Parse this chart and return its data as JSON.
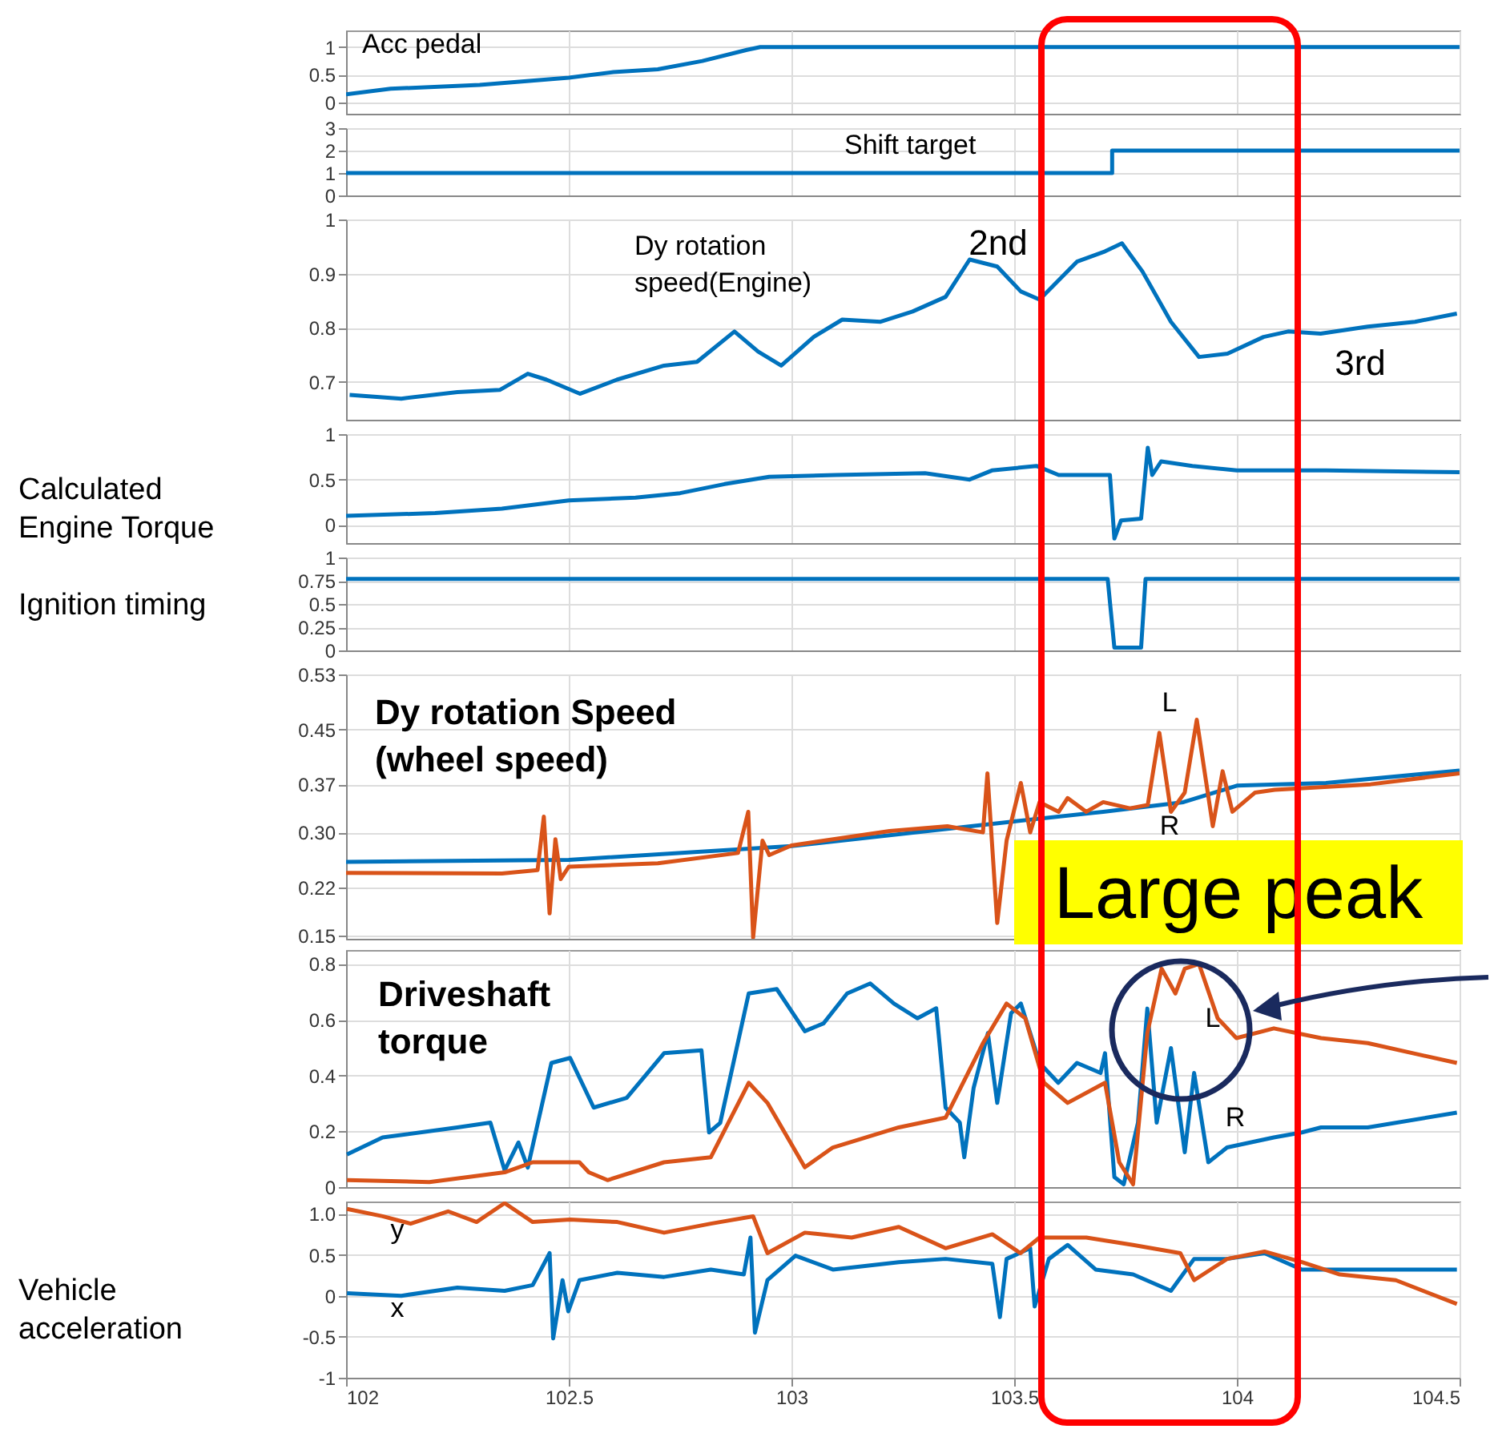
{
  "chart_data": [
    {
      "type": "line",
      "title": "Acc pedal",
      "xlim": [
        102,
        104.5
      ],
      "xticks": [
        102,
        102.5,
        103,
        103.5,
        104,
        104.5
      ],
      "ylim": [
        -0.2,
        1.3
      ],
      "yticks": [
        0,
        0.5,
        1
      ],
      "grid": true,
      "tick_labels": "y",
      "series": [
        {
          "color": "#0072bd",
          "x": [
            102,
            102.1,
            102.3,
            102.5,
            102.6,
            102.7,
            102.8,
            102.9,
            102.93,
            104.5
          ],
          "values": [
            0.15,
            0.25,
            0.32,
            0.45,
            0.55,
            0.6,
            0.75,
            0.95,
            1,
            1
          ]
        }
      ]
    },
    {
      "type": "step",
      "title": "Shift target",
      "xlim": [
        102,
        104.5
      ],
      "xticks": [
        102,
        102.5,
        103,
        103.5,
        104,
        104.5
      ],
      "ylim": [
        0,
        3
      ],
      "yticks": [
        0,
        1,
        2,
        3
      ],
      "grid": true,
      "tick_labels": "y",
      "series": [
        {
          "color": "#0072bd",
          "x": [
            102,
            103.72,
            104.5
          ],
          "values": [
            1,
            2,
            2
          ]
        }
      ]
    },
    {
      "type": "line",
      "title": "Dy rotation speed(Engine)",
      "xlim": [
        102,
        104.5
      ],
      "xticks": [
        102,
        102.5,
        103,
        103.5,
        104,
        104.5
      ],
      "ylim": [
        0.63,
        1
      ],
      "yticks": [
        0.7,
        0.8,
        0.9,
        1
      ],
      "grid": true,
      "tick_labels": "y",
      "annotations": [
        "2nd",
        "3rd"
      ],
      "series": [
        {
          "color": "#0072bd",
          "x": [
            102.008,
            102.124,
            102.25,
            102.345,
            102.408,
            102.45,
            102.525,
            102.608,
            102.714,
            102.788,
            102.872,
            102.925,
            102.977,
            103.05,
            103.114,
            103.2,
            103.272,
            103.346,
            103.4,
            103.462,
            103.515,
            103.557,
            103.641,
            103.704,
            103.742,
            103.788,
            103.852,
            103.915,
            103.979,
            104.06,
            104.115,
            104.188,
            104.294,
            104.4,
            104.494
          ],
          "values": [
            0.676,
            0.669,
            0.681,
            0.685,
            0.715,
            0.704,
            0.678,
            0.704,
            0.73,
            0.737,
            0.793,
            0.756,
            0.73,
            0.783,
            0.815,
            0.811,
            0.83,
            0.857,
            0.926,
            0.913,
            0.867,
            0.852,
            0.922,
            0.941,
            0.956,
            0.904,
            0.811,
            0.746,
            0.752,
            0.783,
            0.793,
            0.789,
            0.802,
            0.811,
            0.826
          ]
        }
      ]
    },
    {
      "type": "line",
      "ylabel": "Calculated Engine Torque",
      "xlim": [
        102,
        104.5
      ],
      "xticks": [
        102,
        102.5,
        103,
        103.5,
        104,
        104.5
      ],
      "ylim": [
        -0.2,
        1
      ],
      "yticks": [
        0,
        0.5,
        1
      ],
      "grid": true,
      "tick_labels": "y",
      "series": [
        {
          "color": "#0072bd",
          "x": [
            102,
            102.2,
            102.35,
            102.5,
            102.65,
            102.75,
            102.85,
            102.95,
            103.1,
            103.3,
            103.4,
            103.45,
            103.55,
            103.6,
            103.7,
            103.715,
            103.725,
            103.74,
            103.785,
            103.8,
            103.81,
            103.83,
            103.9,
            104,
            104.2,
            104.5
          ],
          "values": [
            0.1,
            0.13,
            0.18,
            0.27,
            0.3,
            0.35,
            0.45,
            0.53,
            0.55,
            0.57,
            0.5,
            0.6,
            0.65,
            0.55,
            0.55,
            0.55,
            -0.15,
            0.05,
            0.07,
            0.85,
            0.55,
            0.7,
            0.65,
            0.6,
            0.6,
            0.58
          ]
        }
      ]
    },
    {
      "type": "line",
      "ylabel": "Ignition timing",
      "xlim": [
        102,
        104.5
      ],
      "xticks": [
        102,
        102.5,
        103,
        103.5,
        104,
        104.5
      ],
      "ylim": [
        0,
        1
      ],
      "yticks": [
        0,
        0.25,
        0.5,
        0.75,
        1
      ],
      "grid": true,
      "tick_labels": "y",
      "series": [
        {
          "color": "#0072bd",
          "x": [
            102,
            103.71,
            103.725,
            103.785,
            103.795,
            104.5
          ],
          "values": [
            0.77,
            0.77,
            0.03,
            0.03,
            0.77,
            0.77
          ]
        }
      ]
    },
    {
      "type": "line",
      "title": "Dy rotation Speed (wheel speed)",
      "xlim": [
        102,
        104.5
      ],
      "xticks": [
        102,
        102.5,
        103,
        103.5,
        104,
        104.5
      ],
      "ylim": [
        0.145,
        0.53
      ],
      "yticks": [
        0.15,
        {
          "value": 0.22,
          "label": "0.22"
        },
        {
          "value": 0.3,
          "label": "0.30"
        },
        0.37,
        0.45,
        0.53
      ],
      "grid": true,
      "tick_labels": "y",
      "annotations": [
        "Large peak"
      ],
      "series": [
        {
          "name": "R",
          "color": "#0072bd",
          "x": [
            102,
            102.5,
            103,
            103.5,
            103.7,
            103.88,
            104,
            104.2,
            104.5
          ],
          "values": [
            0.257,
            0.26,
            0.28,
            0.316,
            0.33,
            0.344,
            0.368,
            0.372,
            0.39
          ]
        },
        {
          "name": "L",
          "color": "#d95319",
          "x": [
            102,
            102.35,
            102.43,
            102.444,
            102.457,
            102.47,
            102.482,
            102.5,
            102.7,
            102.88,
            102.903,
            102.914,
            102.935,
            102.95,
            103,
            103.22,
            103.35,
            103.43,
            103.44,
            103.462,
            103.483,
            103.515,
            103.536,
            103.557,
            103.6,
            103.62,
            103.662,
            103.7,
            103.76,
            103.8,
            103.826,
            103.852,
            103.883,
            103.91,
            103.946,
            103.968,
            103.99,
            104.041,
            104.085,
            104.3,
            104.5
          ],
          "values": [
            0.241,
            0.24,
            0.245,
            0.323,
            0.182,
            0.29,
            0.232,
            0.25,
            0.255,
            0.27,
            0.33,
            0.147,
            0.288,
            0.267,
            0.281,
            0.302,
            0.309,
            0.3,
            0.386,
            0.168,
            0.288,
            0.372,
            0.3,
            0.344,
            0.33,
            0.35,
            0.33,
            0.344,
            0.335,
            0.34,
            0.445,
            0.33,
            0.358,
            0.464,
            0.309,
            0.389,
            0.33,
            0.358,
            0.362,
            0.37,
            0.386
          ]
        }
      ]
    },
    {
      "type": "line",
      "title": "Driveshaft torque",
      "xlim": [
        102,
        104.5
      ],
      "xticks": [
        102,
        102.5,
        103,
        103.5,
        104,
        104.5
      ],
      "ylim": [
        0,
        0.85
      ],
      "yticks": [
        0,
        0.2,
        0.4,
        0.6,
        0.8
      ],
      "grid": true,
      "tick_labels": "y",
      "series": [
        {
          "name": "R",
          "color": "#0072bd",
          "x": [
            102.002,
            102.082,
            102.25,
            102.324,
            102.356,
            102.387,
            102.408,
            102.461,
            102.503,
            102.556,
            102.63,
            102.714,
            102.798,
            102.815,
            102.84,
            102.904,
            102.967,
            103.03,
            103.072,
            103.125,
            103.177,
            103.23,
            103.283,
            103.325,
            103.346,
            103.378,
            103.388,
            103.409,
            103.441,
            103.462,
            103.493,
            103.515,
            103.536,
            103.557,
            103.599,
            103.641,
            103.694,
            103.704,
            103.725,
            103.746,
            103.778,
            103.799,
            103.82,
            103.852,
            103.883,
            103.904,
            103.936,
            103.978,
            104.083,
            104.146,
            104.189,
            104.294,
            104.494
          ],
          "values": [
            0.117,
            0.178,
            0.214,
            0.231,
            0.06,
            0.16,
            0.07,
            0.445,
            0.463,
            0.285,
            0.32,
            0.48,
            0.49,
            0.196,
            0.23,
            0.694,
            0.71,
            0.559,
            0.587,
            0.694,
            0.73,
            0.658,
            0.605,
            0.641,
            0.285,
            0.231,
            0.107,
            0.356,
            0.552,
            0.302,
            0.623,
            0.658,
            0.552,
            0.445,
            0.374,
            0.445,
            0.409,
            0.48,
            0.036,
            0.01,
            0.231,
            0.64,
            0.231,
            0.498,
            0.125,
            0.409,
            0.089,
            0.142,
            0.178,
            0.196,
            0.214,
            0.214,
            0.267
          ]
        },
        {
          "name": "L",
          "color": "#d95319",
          "x": [
            102.002,
            102.187,
            102.356,
            102.419,
            102.524,
            102.545,
            102.587,
            102.714,
            102.819,
            102.904,
            102.946,
            103.03,
            103.093,
            103.241,
            103.346,
            103.43,
            103.483,
            103.525,
            103.567,
            103.62,
            103.704,
            103.736,
            103.767,
            103.799,
            103.831,
            103.862,
            103.883,
            103.915,
            103.957,
            103.999,
            104.083,
            104.189,
            104.294,
            104.494
          ],
          "values": [
            0.025,
            0.018,
            0.053,
            0.089,
            0.089,
            0.053,
            0.025,
            0.089,
            0.107,
            0.374,
            0.302,
            0.071,
            0.142,
            0.214,
            0.249,
            0.516,
            0.658,
            0.605,
            0.374,
            0.302,
            0.374,
            0.089,
            0.01,
            0.552,
            0.783,
            0.694,
            0.783,
            0.8,
            0.605,
            0.534,
            0.569,
            0.534,
            0.516,
            0.445
          ]
        }
      ]
    },
    {
      "type": "line",
      "ylabel": "Vehicle acceleration",
      "xlim": [
        102,
        104.5
      ],
      "xticks": [
        102,
        102.5,
        103,
        103.5,
        104,
        104.5
      ],
      "ylim": [
        -1,
        1.15
      ],
      "yticks": [
        -1,
        -0.5,
        0,
        0.5,
        {
          "value": 1,
          "label": "1.0"
        }
      ],
      "grid": true,
      "series": [
        {
          "name": "x",
          "color": "#0072bd",
          "x": [
            102.002,
            102.124,
            102.25,
            102.356,
            102.419,
            102.457,
            102.465,
            102.486,
            102.499,
            102.524,
            102.609,
            102.714,
            102.819,
            102.893,
            102.908,
            102.918,
            102.946,
            103.009,
            103.093,
            103.241,
            103.346,
            103.451,
            103.468,
            103.483,
            103.536,
            103.546,
            103.578,
            103.62,
            103.683,
            103.767,
            103.852,
            103.904,
            103.978,
            104.062,
            104.146,
            104.494
          ],
          "values": [
            0.03,
            0.0,
            0.1,
            0.06,
            0.13,
            0.52,
            -0.52,
            0.19,
            -0.19,
            0.19,
            0.28,
            0.23,
            0.32,
            0.26,
            0.71,
            -0.45,
            0.19,
            0.49,
            0.32,
            0.41,
            0.45,
            0.39,
            -0.26,
            0.45,
            0.58,
            -0.13,
            0.45,
            0.62,
            0.32,
            0.26,
            0.06,
            0.45,
            0.45,
            0.52,
            0.32,
            0.32
          ]
        },
        {
          "name": "y",
          "color": "#d95319",
          "x": [
            102.002,
            102.082,
            102.145,
            102.229,
            102.293,
            102.356,
            102.419,
            102.503,
            102.609,
            102.714,
            102.819,
            102.914,
            102.946,
            103.03,
            103.135,
            103.241,
            103.346,
            103.451,
            103.514,
            103.557,
            103.662,
            103.767,
            103.873,
            103.904,
            103.978,
            104.062,
            104.146,
            104.231,
            104.357,
            104.494
          ],
          "values": [
            1.06,
            0.97,
            0.88,
            1.03,
            0.9,
            1.13,
            0.9,
            0.93,
            0.9,
            0.77,
            0.88,
            0.97,
            0.52,
            0.77,
            0.71,
            0.84,
            0.58,
            0.75,
            0.52,
            0.71,
            0.71,
            0.62,
            0.52,
            0.19,
            0.45,
            0.54,
            0.41,
            0.26,
            0.19,
            -0.1
          ]
        }
      ]
    }
  ]
}
